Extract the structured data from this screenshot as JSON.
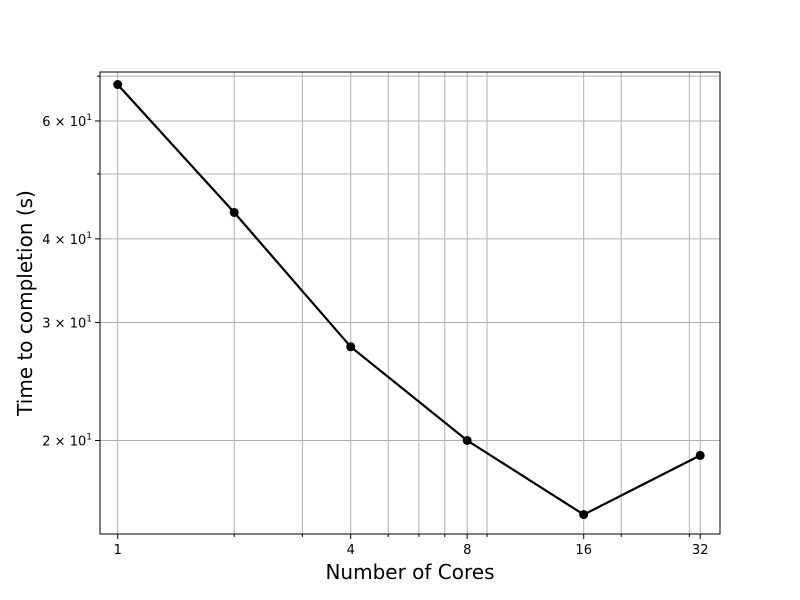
{
  "chart_data": {
    "type": "line",
    "title": "",
    "xlabel": "Number of Cores",
    "ylabel": "Time to completion (s)",
    "x_scale": "log2",
    "y_scale": "log10",
    "xlim": [
      0.9,
      36
    ],
    "ylim": [
      14.5,
      71
    ],
    "grid": true,
    "grid_which": "both",
    "legend": "none",
    "x_ticks": [
      1,
      4,
      8,
      16,
      32
    ],
    "x_tick_labels": [
      "1",
      "4",
      "8",
      "16",
      "32"
    ],
    "x_minor_ticks": [
      2,
      3,
      5,
      6,
      7,
      9,
      20,
      30
    ],
    "y_ticks": [
      20,
      30,
      40,
      60
    ],
    "y_tick_labels": [
      {
        "base": "2 × 10",
        "exp": "1"
      },
      {
        "base": "3 × 10",
        "exp": "1"
      },
      {
        "base": "4 × 10",
        "exp": "1"
      },
      {
        "base": "6 × 10",
        "exp": "1"
      }
    ],
    "y_minor_ticks": [
      50,
      70
    ],
    "series": [
      {
        "color": "#000000",
        "marker": "circle",
        "x": [
          1,
          2,
          4,
          8,
          16,
          32
        ],
        "y": [
          68,
          43.8,
          27.6,
          20,
          15.5,
          19
        ]
      }
    ]
  }
}
